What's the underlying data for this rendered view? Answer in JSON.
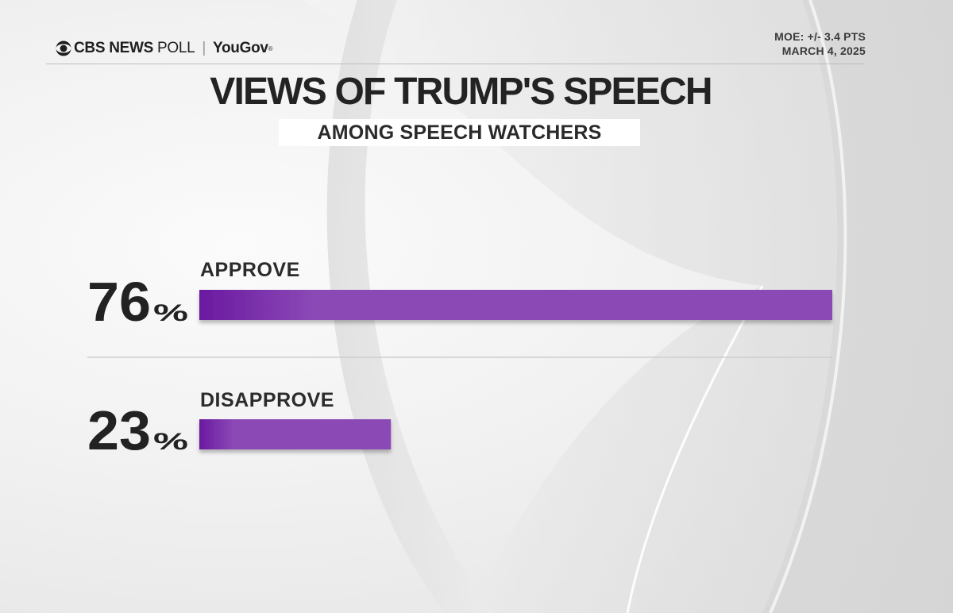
{
  "header": {
    "logo_cbs": "CBS NEWS",
    "logo_poll": "POLL",
    "logo_separator": "|",
    "logo_yougov": "YouGov",
    "moe": "MOE: +/- 3.4 PTS",
    "date": "MARCH 4, 2025"
  },
  "colors": {
    "bar_dark": "#6a1aa0",
    "bar_light": "#8b48b6",
    "text": "#222222"
  },
  "chart_data": {
    "type": "bar",
    "orientation": "horizontal",
    "title": "VIEWS OF TRUMP'S SPEECH",
    "subtitle": "AMONG SPEECH WATCHERS",
    "categories": [
      "APPROVE",
      "DISAPPROVE"
    ],
    "values": [
      76,
      23
    ],
    "value_labels": [
      "76",
      "23"
    ],
    "value_suffix": "%",
    "xlim": [
      0,
      76
    ],
    "grid": false,
    "legend": "none"
  }
}
